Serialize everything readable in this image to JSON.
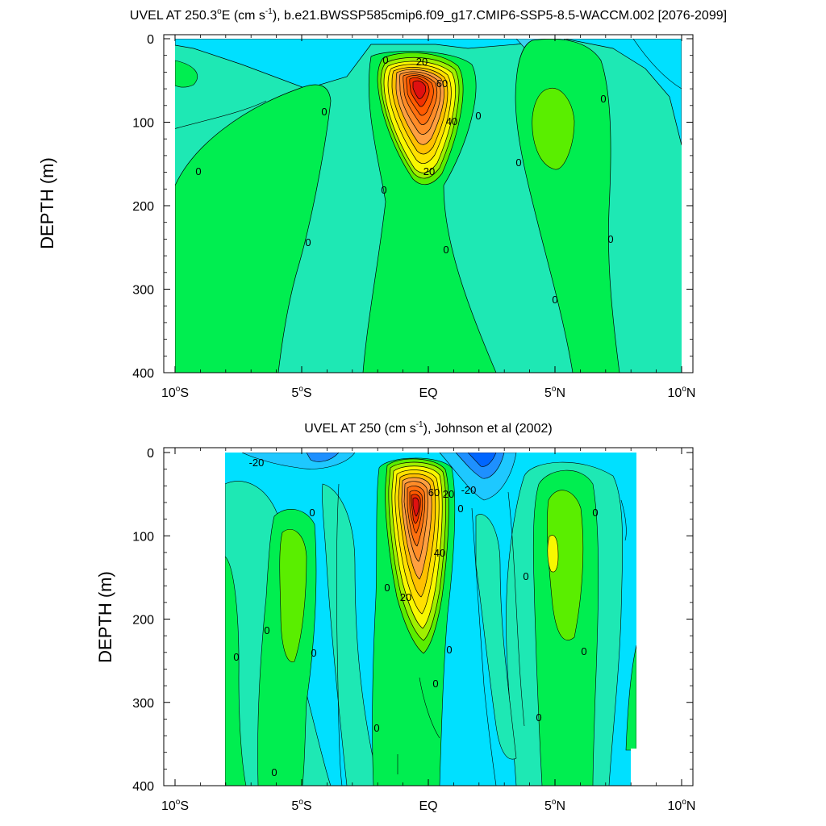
{
  "colors": {
    "background": "#ffffff",
    "contour_line": "#000000",
    "levels": {
      "-40": "#0066ff",
      "-30": "#1e90ff",
      "-20": "#1ec8ff",
      "-10": "#3cd2f0",
      "-5": "#00e0ff",
      "0": "#1ee8b4",
      "5": "#00ee50",
      "10": "#5aee00",
      "20": "#a0f000",
      "30": "#f8f800",
      "40": "#ffe000",
      "50": "#ffc000",
      "60": "#ffa040",
      "70": "#ff8c28",
      "80": "#ff7010",
      "90": "#ff5a00",
      "100": "#f03000",
      "110": "#e01010"
    }
  },
  "chart_data": [
    {
      "type": "contour",
      "title_pre": "UVEL AT 250.3",
      "title_sup1": "o",
      "title_mid": "E (cm s",
      "title_sup2": "-1",
      "title_post": "), b.e21.BWSSP585cmip6.f09_g17.CMIP6-SSP5-8.5-WACCM.002 [2076-2099]",
      "ylabel": "DEPTH (m)",
      "x_ticks": [
        {
          "main": "10",
          "sup": "o",
          "suf": "S",
          "lat": -10
        },
        {
          "main": "5",
          "sup": "o",
          "suf": "S",
          "lat": -5
        },
        {
          "main": "EQ",
          "sup": "",
          "suf": "",
          "lat": 0
        },
        {
          "main": "5",
          "sup": "o",
          "suf": "N",
          "lat": 5
        },
        {
          "main": "10",
          "sup": "o",
          "suf": "N",
          "lat": 10
        }
      ],
      "y_ticks": [
        "0",
        "100",
        "200",
        "300",
        "400"
      ],
      "xlim": [
        -10,
        10
      ],
      "ylim": [
        0,
        400
      ],
      "contour_labels": [
        "0",
        "20",
        "60",
        "0",
        "40",
        "0",
        "0",
        "20",
        "0",
        "0",
        "0",
        "0",
        "0",
        "0",
        "0"
      ],
      "peak_value": 110,
      "peak_lat": 0,
      "peak_depth": 75
    },
    {
      "type": "contour",
      "title_pre": "UVEL AT 250 (cm s",
      "title_sup1": "",
      "title_mid": "",
      "title_sup2": "-1",
      "title_post": "), Johnson et al (2002)",
      "ylabel": "DEPTH (m)",
      "x_ticks": [
        {
          "main": "10",
          "sup": "o",
          "suf": "S",
          "lat": -10
        },
        {
          "main": "5",
          "sup": "o",
          "suf": "S",
          "lat": -5
        },
        {
          "main": "EQ",
          "sup": "",
          "suf": "",
          "lat": 0
        },
        {
          "main": "5",
          "sup": "o",
          "suf": "N",
          "lat": 5
        },
        {
          "main": "10",
          "sup": "o",
          "suf": "N",
          "lat": 10
        }
      ],
      "y_ticks": [
        "0",
        "100",
        "200",
        "300",
        "400"
      ],
      "xlim": [
        -10,
        10
      ],
      "ylim": [
        0,
        400
      ],
      "contour_labels": [
        "-20",
        "-20",
        "60",
        "20",
        "0",
        "0",
        "0",
        "40",
        "0",
        "20",
        "0",
        "0",
        "0",
        "0",
        "0",
        "0",
        "0",
        "0",
        "0",
        "0"
      ],
      "peak_value": 100,
      "peak_lat": -0.5,
      "peak_depth": 70
    }
  ]
}
